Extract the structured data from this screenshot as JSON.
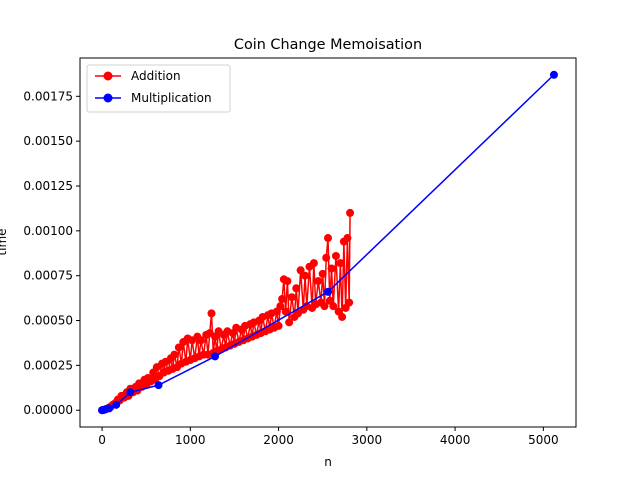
{
  "chart_data": {
    "type": "line",
    "title": "Coin Change Memoisation",
    "xlabel": "n",
    "ylabel": "time",
    "xlim": [
      -250,
      5370
    ],
    "ylim": [
      -9.35e-05,
      0.0019635
    ],
    "xticks": [
      0,
      1000,
      2000,
      3000,
      4000,
      5000
    ],
    "xtick_labels": [
      "0",
      "1000",
      "2000",
      "3000",
      "4000",
      "5000"
    ],
    "yticks": [
      0,
      0.00025,
      0.0005,
      0.00075,
      0.001,
      0.00125,
      0.0015,
      0.00175
    ],
    "ytick_labels": [
      "0.00000",
      "0.00025",
      "0.00050",
      "0.00075",
      "0.00100",
      "0.00125",
      "0.00150",
      "0.00175"
    ],
    "legend_position": "top-left",
    "grid": false,
    "series": [
      {
        "name": "Addition",
        "color": "#ff0000",
        "marker": "circle",
        "points": [
          [
            0,
            0.0
          ],
          [
            20,
            3e-06
          ],
          [
            50,
            8e-06
          ],
          [
            80,
            1.5e-05
          ],
          [
            100,
            2e-05
          ],
          [
            120,
            3e-05
          ],
          [
            150,
            4e-05
          ],
          [
            180,
            6e-05
          ],
          [
            200,
            5.5e-05
          ],
          [
            220,
            8e-05
          ],
          [
            250,
            7e-05
          ],
          [
            280,
            0.0001
          ],
          [
            300,
            8e-05
          ],
          [
            320,
            0.00012
          ],
          [
            350,
            0.0001
          ],
          [
            380,
            0.00013
          ],
          [
            400,
            0.00011
          ],
          [
            420,
            0.00015
          ],
          [
            450,
            0.00013
          ],
          [
            480,
            0.00017
          ],
          [
            500,
            0.00014
          ],
          [
            520,
            0.00018
          ],
          [
            550,
            0.00016
          ],
          [
            580,
            0.00021
          ],
          [
            600,
            0.00017
          ],
          [
            620,
            0.00024
          ],
          [
            650,
            0.00019
          ],
          [
            680,
            0.00026
          ],
          [
            700,
            0.00021
          ],
          [
            720,
            0.00027
          ],
          [
            750,
            0.00022
          ],
          [
            780,
            0.00029
          ],
          [
            800,
            0.00023
          ],
          [
            820,
            0.00031
          ],
          [
            850,
            0.00024
          ],
          [
            870,
            0.00035
          ],
          [
            900,
            0.00026
          ],
          [
            920,
            0.00038
          ],
          [
            950,
            0.00027
          ],
          [
            970,
            0.0004
          ],
          [
            1000,
            0.00028
          ],
          [
            1020,
            0.00039
          ],
          [
            1050,
            0.00029
          ],
          [
            1080,
            0.00041
          ],
          [
            1100,
            0.0003
          ],
          [
            1120,
            0.00039
          ],
          [
            1150,
            0.00031
          ],
          [
            1180,
            0.00042
          ],
          [
            1200,
            0.00031
          ],
          [
            1220,
            0.00043
          ],
          [
            1240,
            0.00054
          ],
          [
            1260,
            0.00032
          ],
          [
            1280,
            0.00041
          ],
          [
            1300,
            0.00033
          ],
          [
            1320,
            0.00044
          ],
          [
            1350,
            0.00034
          ],
          [
            1380,
            0.00042
          ],
          [
            1400,
            0.00035
          ],
          [
            1420,
            0.00044
          ],
          [
            1450,
            0.00036
          ],
          [
            1480,
            0.00043
          ],
          [
            1500,
            0.00037
          ],
          [
            1520,
            0.00046
          ],
          [
            1550,
            0.00038
          ],
          [
            1580,
            0.00045
          ],
          [
            1600,
            0.00039
          ],
          [
            1620,
            0.00047
          ],
          [
            1650,
            0.0004
          ],
          [
            1680,
            0.00048
          ],
          [
            1700,
            0.00041
          ],
          [
            1720,
            0.00049
          ],
          [
            1750,
            0.00042
          ],
          [
            1780,
            0.0005
          ],
          [
            1800,
            0.00043
          ],
          [
            1820,
            0.00052
          ],
          [
            1850,
            0.00044
          ],
          [
            1880,
            0.00053
          ],
          [
            1900,
            0.00045
          ],
          [
            1920,
            0.00054
          ],
          [
            1950,
            0.00046
          ],
          [
            1980,
            0.00055
          ],
          [
            2000,
            0.00047
          ],
          [
            2020,
            0.00058
          ],
          [
            2040,
            0.00062
          ],
          [
            2060,
            0.00073
          ],
          [
            2080,
            0.00055
          ],
          [
            2100,
            0.00072
          ],
          [
            2120,
            0.00049
          ],
          [
            2150,
            0.00063
          ],
          [
            2180,
            0.00052
          ],
          [
            2200,
            0.00068
          ],
          [
            2220,
            0.00054
          ],
          [
            2250,
            0.00078
          ],
          [
            2280,
            0.00056
          ],
          [
            2300,
            0.00075
          ],
          [
            2320,
            0.00058
          ],
          [
            2350,
            0.0008
          ],
          [
            2380,
            0.00057
          ],
          [
            2400,
            0.00082
          ],
          [
            2420,
            0.00059
          ],
          [
            2450,
            0.00072
          ],
          [
            2480,
            0.0006
          ],
          [
            2500,
            0.00076
          ],
          [
            2520,
            0.00058
          ],
          [
            2540,
            0.00085
          ],
          [
            2560,
            0.00096
          ],
          [
            2580,
            0.00061
          ],
          [
            2600,
            0.00079
          ],
          [
            2620,
            0.00058
          ],
          [
            2650,
            0.00086
          ],
          [
            2680,
            0.00055
          ],
          [
            2700,
            0.00082
          ],
          [
            2720,
            0.00052
          ],
          [
            2740,
            0.00094
          ],
          [
            2760,
            0.00057
          ],
          [
            2780,
            0.00096
          ],
          [
            2800,
            0.0006
          ],
          [
            2810,
            0.0011
          ]
        ]
      },
      {
        "name": "Multiplication",
        "color": "#0000ff",
        "marker": "circle",
        "points": [
          [
            0,
            0.0
          ],
          [
            10,
            1e-06
          ],
          [
            20,
            2e-06
          ],
          [
            40,
            5e-06
          ],
          [
            80,
            1e-05
          ],
          [
            160,
            3e-05
          ],
          [
            320,
            0.0001
          ],
          [
            640,
            0.00014
          ],
          [
            1280,
            0.0003
          ],
          [
            2560,
            0.00066
          ],
          [
            5120,
            0.00187
          ]
        ]
      }
    ]
  }
}
